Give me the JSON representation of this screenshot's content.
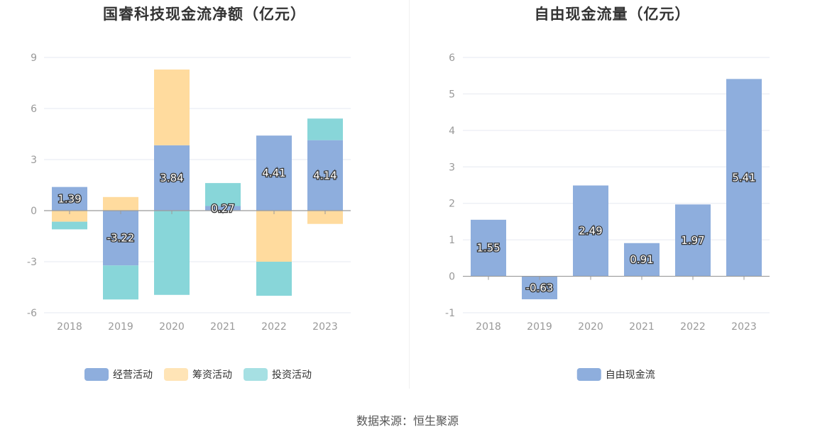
{
  "colors": {
    "operating": "#8eaedd",
    "financing": "#ffdb9e",
    "investing": "#88d6d9",
    "free_cash_flow": "#8eaedd",
    "axis": "#999999",
    "grid": "#e6e9f0",
    "zero_line": "#9a9a9a"
  },
  "source": "数据来源：恒生聚源",
  "chart_data": [
    {
      "type": "bar",
      "stacked": true,
      "title": "国睿科技现金流净额（亿元）",
      "categories": [
        "2018",
        "2019",
        "2020",
        "2021",
        "2022",
        "2023"
      ],
      "series": [
        {
          "name": "经营活动",
          "color_key": "operating",
          "values": [
            1.39,
            -3.22,
            3.84,
            0.27,
            4.41,
            4.14
          ],
          "labels": [
            "1.39",
            "-3.22",
            "3.84",
            "0.27",
            "4.41",
            "4.14"
          ]
        },
        {
          "name": "筹资活动",
          "color_key": "financing",
          "values": [
            -0.65,
            0.8,
            4.45,
            -0.01,
            -3.0,
            -0.78
          ]
        },
        {
          "name": "投资活动",
          "color_key": "investing",
          "values": [
            -0.45,
            -2.0,
            -4.95,
            1.35,
            -2.0,
            1.27
          ]
        }
      ],
      "yticks": [
        "9",
        "6",
        "3",
        "0",
        "-3",
        "-6"
      ],
      "ylim": [
        -6,
        9
      ],
      "grid": true,
      "legend_position": "bottom"
    },
    {
      "type": "bar",
      "title": "自由现金流量（亿元）",
      "categories": [
        "2018",
        "2019",
        "2020",
        "2021",
        "2022",
        "2023"
      ],
      "series": [
        {
          "name": "自由现金流",
          "color_key": "free_cash_flow",
          "values": [
            1.55,
            -0.63,
            2.49,
            0.91,
            1.97,
            5.41
          ],
          "labels": [
            "1.55",
            "-0.63",
            "2.49",
            "0.91",
            "1.97",
            "5.41"
          ]
        }
      ],
      "yticks": [
        "6",
        "5",
        "4",
        "3",
        "2",
        "1",
        "0",
        "-1"
      ],
      "ylim": [
        -1,
        6
      ],
      "grid": true,
      "legend_position": "bottom"
    }
  ]
}
